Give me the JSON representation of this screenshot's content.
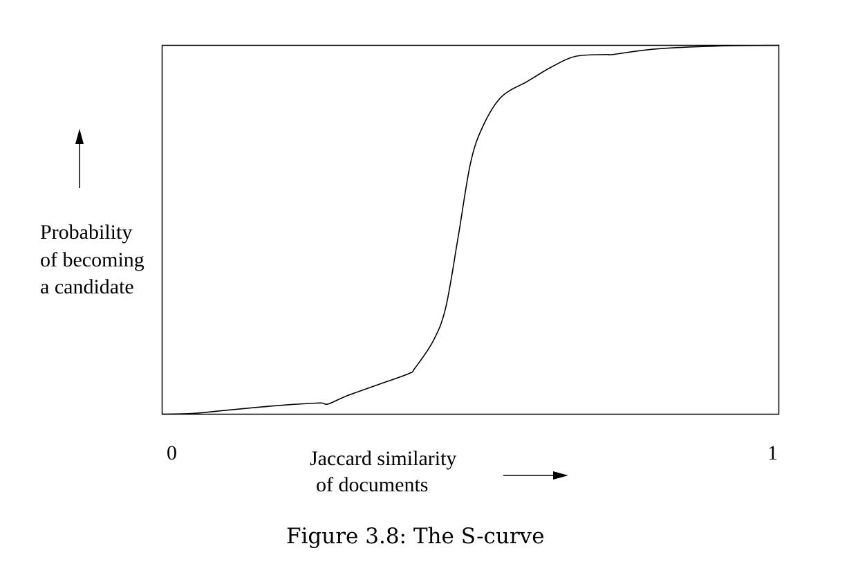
{
  "chart_data": {
    "type": "line",
    "caption": "Figure 3.8: The S-curve",
    "ylabel": [
      "Probability",
      "of becoming",
      "a candidate"
    ],
    "xlabel": [
      "Jaccard similarity",
      "of documents"
    ],
    "x_ticks": [
      "0",
      "1"
    ],
    "xlim": [
      0,
      1
    ],
    "ylim": [
      0,
      1
    ],
    "grid": false,
    "legend": "none",
    "series": [
      {
        "x": [
          0.0,
          0.05,
          0.1,
          0.15,
          0.2,
          0.25,
          0.26,
          0.27,
          0.3,
          0.35,
          0.4,
          0.41,
          0.44,
          0.46,
          0.48,
          0.5,
          0.52,
          0.55,
          0.59,
          0.6,
          0.63,
          0.67,
          0.72,
          0.73,
          0.8,
          0.9,
          1.0
        ],
        "y": [
          0.0,
          0.002,
          0.01,
          0.018,
          0.025,
          0.03,
          0.03,
          0.028,
          0.05,
          0.08,
          0.11,
          0.125,
          0.2,
          0.29,
          0.48,
          0.68,
          0.78,
          0.86,
          0.9,
          0.91,
          0.94,
          0.97,
          0.975,
          0.975,
          0.99,
          0.998,
          1.0
        ]
      }
    ]
  },
  "colors": {
    "stroke": "#000000",
    "background": "#ffffff"
  }
}
